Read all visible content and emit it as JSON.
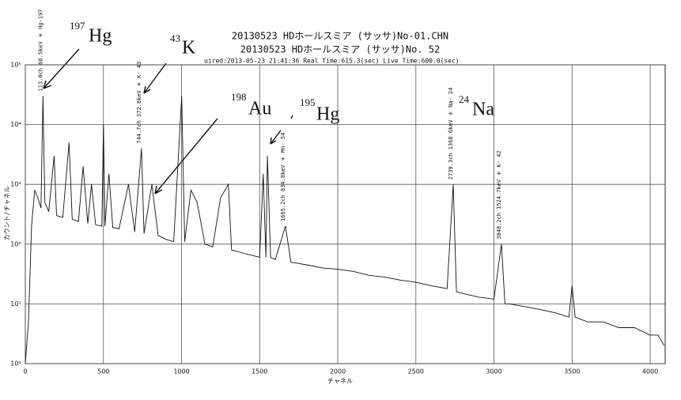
{
  "chart_data": {
    "type": "line",
    "title_lines": [
      "20130523  HDホールスミア  (サッサ)No-01.CHN",
      "20130523  HDホールスミア  (サッサ)No. 52"
    ],
    "info_line": "uired:2013-05-23 21:41:36    Real Time:615.3(sec)    Live Time:600.0(sec)",
    "x_label": "チャネル",
    "y_label": "カウント/チャネル",
    "log_y": true,
    "grid": true,
    "color": "#111111",
    "xlim": [
      0,
      4096
    ],
    "xticks": [
      0,
      500,
      1000,
      1500,
      2000,
      2500,
      3000,
      3500,
      4000
    ],
    "ylim": [
      1,
      100000
    ],
    "yticks": [
      {
        "value": 1,
        "label": "10⁰"
      },
      {
        "value": 10,
        "label": "10¹"
      },
      {
        "value": 100,
        "label": "10²"
      },
      {
        "value": 1000,
        "label": "10³"
      },
      {
        "value": 10000,
        "label": "10⁴"
      },
      {
        "value": 100000,
        "label": "10⁵"
      }
    ],
    "x": [
      0,
      20,
      40,
      60,
      80,
      100,
      113,
      125,
      150,
      185,
      200,
      240,
      280,
      300,
      340,
      370,
      400,
      424,
      450,
      490,
      500,
      510,
      535,
      560,
      600,
      660,
      700,
      744,
      760,
      810,
      850,
      900,
      950,
      1001,
      1020,
      1060,
      1100,
      1150,
      1200,
      1250,
      1300,
      1320,
      1400,
      1450,
      1500,
      1523,
      1540,
      1550,
      1570,
      1600,
      1665,
      1700,
      1800,
      1900,
      2000,
      2100,
      2200,
      2300,
      2400,
      2500,
      2600,
      2700,
      2739,
      2760,
      2800,
      2900,
      3000,
      3048,
      3070,
      3100,
      3200,
      3300,
      3400,
      3480,
      3500,
      3520,
      3600,
      3700,
      3800,
      3900,
      4000,
      4050,
      4090
    ],
    "values": [
      1,
      5,
      200,
      800,
      600,
      400,
      30000,
      500,
      350,
      3000,
      300,
      280,
      5000,
      260,
      240,
      2000,
      220,
      1000,
      210,
      200,
      10000,
      200,
      1500,
      190,
      180,
      1000,
      160,
      4000,
      150,
      1000,
      140,
      120,
      110,
      30000,
      110,
      800,
      500,
      100,
      90,
      600,
      1000,
      80,
      70,
      65,
      60,
      1500,
      60,
      3000,
      60,
      55,
      200,
      50,
      45,
      40,
      38,
      35,
      30,
      28,
      25,
      23,
      20,
      18,
      1000,
      16,
      15,
      13,
      12,
      100,
      10,
      10,
      9,
      8,
      7,
      6,
      20,
      6,
      5,
      5,
      4,
      4,
      3,
      3,
      2
    ],
    "peak_labels": [
      {
        "text": "113.0ch 68.5keV ＊ Hg-197",
        "channel": 113
      },
      {
        "text": "744.7ch 372.8keV ＊ K- 43",
        "channel": 744
      },
      {
        "text": "1665.2ch 834.8keV ＊ Mn- 54",
        "channel": 1665
      },
      {
        "text": "2739.3ch 1368.6keV ＊ Na- 24",
        "channel": 2739
      },
      {
        "text": "3048.2ch 1524.7keV ＊ K- 42",
        "channel": 3048
      }
    ],
    "handwritten": [
      {
        "mass": "197",
        "symbol": "Hg"
      },
      {
        "mass": "43",
        "symbol": "K"
      },
      {
        "mass": "198",
        "symbol": "Au"
      },
      {
        "mass": "195",
        "symbol": "Hg"
      },
      {
        "mass": "24",
        "symbol": "Na"
      }
    ]
  }
}
